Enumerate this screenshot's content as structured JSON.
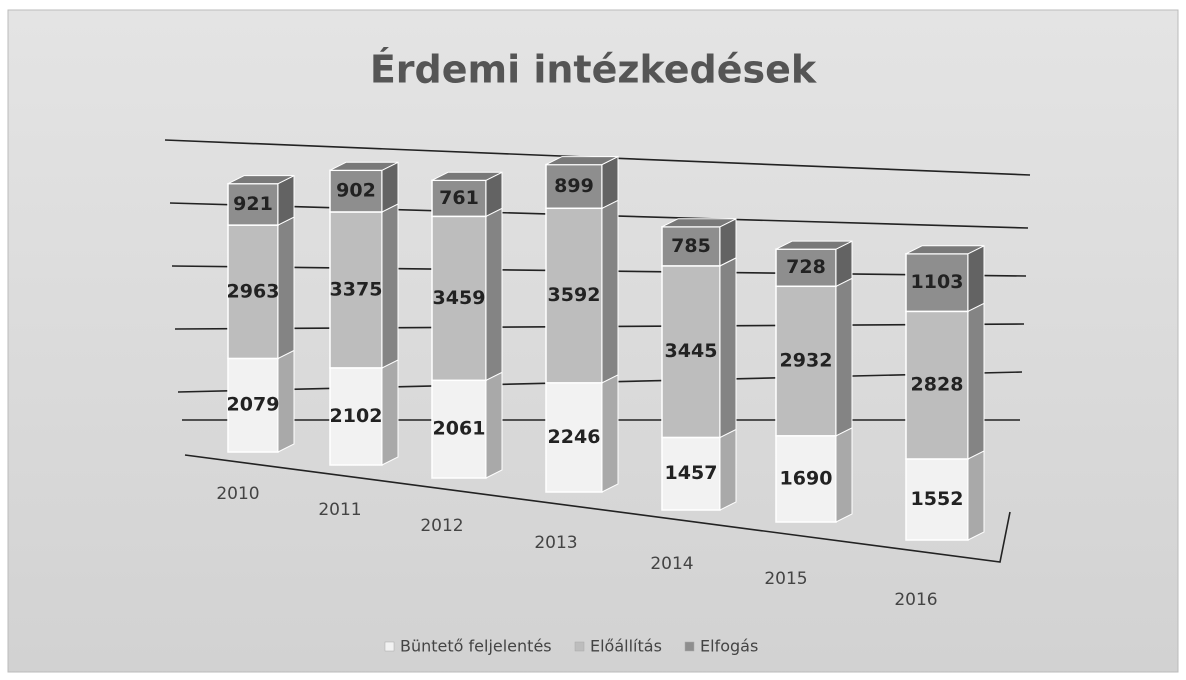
{
  "chart_data": {
    "type": "bar",
    "stacked": true,
    "title": "Érdemi intézkedések",
    "categories": [
      "2010",
      "2011",
      "2012",
      "2013",
      "2014",
      "2015",
      "2016"
    ],
    "series": [
      {
        "name": "Büntető feljelentés",
        "color": "#f2f2f2",
        "values": [
          2079,
          2102,
          2061,
          2246,
          1457,
          1690,
          1552
        ]
      },
      {
        "name": "Előállítás",
        "color": "#bdbdbd",
        "values": [
          2963,
          3375,
          3459,
          3592,
          3445,
          2932,
          2828
        ]
      },
      {
        "name": "Elfogás",
        "color": "#8e8e8e",
        "values": [
          921,
          902,
          761,
          899,
          785,
          728,
          1103
        ]
      }
    ],
    "legend": "bottom"
  }
}
